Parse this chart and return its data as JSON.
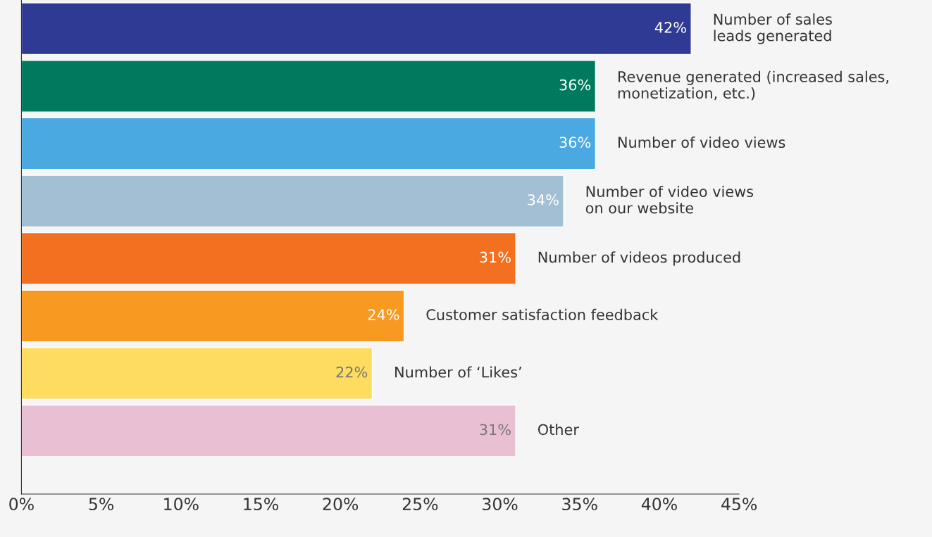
{
  "chart_data": {
    "type": "bar",
    "orientation": "horizontal",
    "categories": [
      "Number of sales\nleads generated",
      "Revenue generated (increased sales,\nmonetization, etc.)",
      "Number of video views",
      "Number of video views\non our website",
      "Number of videos produced",
      "Customer satisfaction feedback",
      "Number of ‘Likes’",
      "Other"
    ],
    "values": [
      42,
      36,
      36,
      34,
      31,
      24,
      22,
      31
    ],
    "colors": [
      "#2e3a93",
      "#007a5e",
      "#4aa9e0",
      "#a3bfd3",
      "#f37021",
      "#f89a21",
      "#fedc5f",
      "#e9c0d3"
    ],
    "value_labels": [
      "42%",
      "36%",
      "36%",
      "34%",
      "31%",
      "24%",
      "22%",
      "31%"
    ],
    "xlim": [
      0,
      45
    ],
    "xticks": [
      {
        "value": 0,
        "label": "0%"
      },
      {
        "value": 5,
        "label": "5%"
      },
      {
        "value": 10,
        "label": "10%"
      },
      {
        "value": 15,
        "label": "15%"
      },
      {
        "value": 20,
        "label": "20%"
      },
      {
        "value": 25,
        "label": "25%"
      },
      {
        "value": 30,
        "label": "30%"
      },
      {
        "value": 35,
        "label": "35%"
      },
      {
        "value": 40,
        "label": "40%"
      },
      {
        "value": 45,
        "label": "45%"
      }
    ],
    "tick_labels": "x",
    "grid": false,
    "legend": false
  }
}
